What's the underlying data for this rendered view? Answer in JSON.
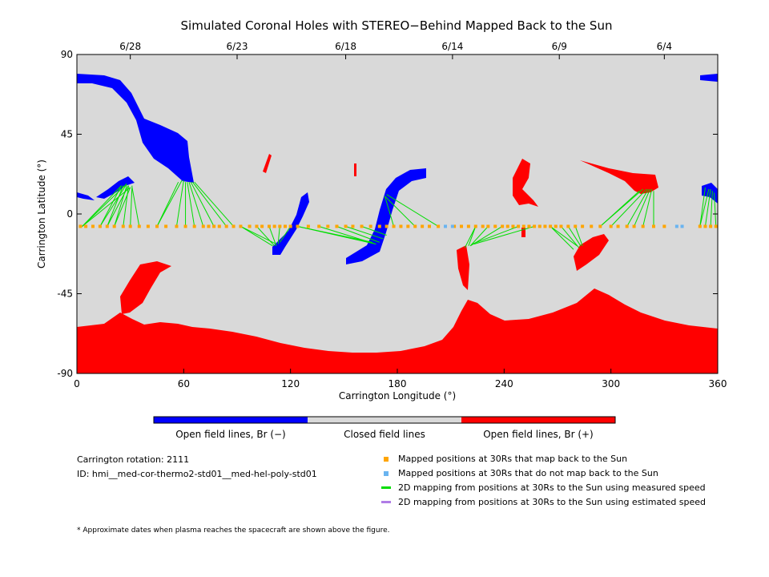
{
  "title": "Simulated Coronal Holes with STEREO−Behind Mapped Back to the Sun",
  "colors": {
    "background": "#ffffff",
    "closed": "#d9d9d9",
    "open_negative": "#0000ff",
    "open_positive": "#ff0000",
    "mapped_back": "#ffa500",
    "not_mapped": "#6ab4f0",
    "measured_speed": "#00dd00",
    "estimated_speed": "#b07ce6"
  },
  "chart_data": {
    "type": "heatmap",
    "title": "Simulated Coronal Holes with STEREO−Behind Mapped Back to the Sun",
    "xlabel": "Carrington Longitude (°)",
    "ylabel": "Carrington Latitude (°)",
    "xlim": [
      0,
      360
    ],
    "ylim": [
      -90,
      90
    ],
    "x_ticks": [
      0,
      60,
      120,
      180,
      240,
      300,
      360
    ],
    "y_ticks": [
      -90,
      -45,
      0,
      45,
      90
    ],
    "top_axis_dates": [
      {
        "label": "6/28",
        "lon": 30
      },
      {
        "label": "6/23",
        "lon": 90
      },
      {
        "label": "6/18",
        "lon": 151
      },
      {
        "label": "6/14",
        "lon": 211
      },
      {
        "label": "6/9",
        "lon": 271
      },
      {
        "label": "6/4",
        "lon": 330
      }
    ],
    "colorbar": {
      "segments": [
        {
          "label": "Open field lines, Br (−)",
          "color": "#0000ff"
        },
        {
          "label": "Closed field lines",
          "color": "#d9d9d9"
        },
        {
          "label": "Open field lines, Br (+)",
          "color": "#ff0000"
        }
      ]
    },
    "mapping_latitude": -7,
    "mapped_points_lon": [
      2,
      5,
      9,
      13,
      17,
      21,
      26,
      30,
      35,
      40,
      45,
      50,
      56,
      61,
      66,
      71,
      74,
      77,
      80,
      84,
      88,
      92,
      97,
      101,
      104,
      108,
      111,
      114,
      117,
      120,
      124,
      130,
      136,
      141,
      146,
      151,
      155,
      160,
      165,
      170,
      174,
      178,
      182,
      186,
      190,
      194,
      198,
      203,
      212,
      216,
      220,
      224,
      228,
      231,
      235,
      239,
      242,
      245,
      248,
      251,
      254,
      257,
      260,
      263,
      266,
      269,
      272,
      276,
      280,
      284,
      289,
      294,
      300,
      304,
      309,
      313,
      318,
      324,
      330,
      350,
      353,
      356,
      359
    ],
    "unmapped_points_lon": [
      207,
      211,
      337,
      340
    ],
    "mapping_lines_measured": [
      {
        "from_lon": 3,
        "targets": [
          [
            25,
            16
          ],
          [
            28,
            17
          ],
          [
            30,
            15
          ]
        ]
      },
      {
        "from_lon": 13,
        "targets": [
          [
            25,
            16
          ],
          [
            28,
            17
          ]
        ]
      },
      {
        "from_lon": 17,
        "targets": [
          [
            26,
            16
          ],
          [
            29,
            16
          ]
        ]
      },
      {
        "from_lon": 21,
        "targets": [
          [
            28,
            16
          ],
          [
            30,
            15
          ]
        ]
      },
      {
        "from_lon": 26,
        "targets": [
          [
            29,
            16
          ]
        ]
      },
      {
        "from_lon": 30,
        "targets": [
          [
            31,
            16
          ]
        ]
      },
      {
        "from_lon": 35,
        "targets": [
          [
            31,
            15
          ]
        ]
      },
      {
        "from_lon": 45,
        "targets": [
          [
            57,
            18
          ],
          [
            59,
            19
          ]
        ]
      },
      {
        "from_lon": 56,
        "targets": [
          [
            60,
            19
          ]
        ]
      },
      {
        "from_lon": 61,
        "targets": [
          [
            61,
            18
          ]
        ]
      },
      {
        "from_lon": 66,
        "targets": [
          [
            62,
            18
          ]
        ]
      },
      {
        "from_lon": 71,
        "targets": [
          [
            63,
            18
          ]
        ]
      },
      {
        "from_lon": 77,
        "targets": [
          [
            64,
            18
          ]
        ]
      },
      {
        "from_lon": 84,
        "targets": [
          [
            65,
            18
          ]
        ]
      },
      {
        "from_lon": 88,
        "targets": [
          [
            66,
            18
          ]
        ]
      },
      {
        "from_lon": 92,
        "targets": [
          [
            110,
            -18
          ],
          [
            112,
            -17
          ]
        ]
      },
      {
        "from_lon": 101,
        "targets": [
          [
            111,
            -18
          ]
        ]
      },
      {
        "from_lon": 108,
        "targets": [
          [
            112,
            -18
          ]
        ]
      },
      {
        "from_lon": 114,
        "targets": [
          [
            113,
            -17
          ]
        ]
      },
      {
        "from_lon": 120,
        "targets": [
          [
            114,
            -16
          ]
        ]
      },
      {
        "from_lon": 124,
        "targets": [
          [
            166,
            -16
          ],
          [
            168,
            -17
          ]
        ]
      },
      {
        "from_lon": 136,
        "targets": [
          [
            168,
            -17
          ]
        ]
      },
      {
        "from_lon": 146,
        "targets": [
          [
            170,
            -16
          ]
        ]
      },
      {
        "from_lon": 151,
        "targets": [
          [
            172,
            -14
          ]
        ]
      },
      {
        "from_lon": 160,
        "targets": [
          [
            174,
            -12
          ]
        ]
      },
      {
        "from_lon": 178,
        "targets": [
          [
            173,
            10
          ]
        ]
      },
      {
        "from_lon": 190,
        "targets": [
          [
            173,
            10
          ]
        ]
      },
      {
        "from_lon": 203,
        "targets": [
          [
            174,
            11
          ]
        ]
      },
      {
        "from_lon": 224,
        "targets": [
          [
            218,
            -19
          ],
          [
            220,
            -18
          ]
        ]
      },
      {
        "from_lon": 231,
        "targets": [
          [
            221,
            -18
          ]
        ]
      },
      {
        "from_lon": 239,
        "targets": [
          [
            221,
            -18
          ]
        ]
      },
      {
        "from_lon": 248,
        "targets": [
          [
            222,
            -17
          ]
        ]
      },
      {
        "from_lon": 257,
        "targets": [
          [
            223,
            -17
          ]
        ]
      },
      {
        "from_lon": 266,
        "targets": [
          [
            279,
            -20
          ],
          [
            281,
            -18
          ]
        ]
      },
      {
        "from_lon": 272,
        "targets": [
          [
            282,
            -19
          ]
        ]
      },
      {
        "from_lon": 276,
        "targets": [
          [
            283,
            -18
          ]
        ]
      },
      {
        "from_lon": 280,
        "targets": [
          [
            284,
            -18
          ]
        ]
      },
      {
        "from_lon": 294,
        "targets": [
          [
            316,
            13
          ],
          [
            318,
            14
          ]
        ]
      },
      {
        "from_lon": 300,
        "targets": [
          [
            320,
            14
          ]
        ]
      },
      {
        "from_lon": 309,
        "targets": [
          [
            321,
            14
          ]
        ]
      },
      {
        "from_lon": 313,
        "targets": [
          [
            322,
            14
          ]
        ]
      },
      {
        "from_lon": 318,
        "targets": [
          [
            323,
            14
          ]
        ]
      },
      {
        "from_lon": 324,
        "targets": [
          [
            324,
            13
          ]
        ]
      },
      {
        "from_lon": 350,
        "targets": [
          [
            353,
            15
          ],
          [
            355,
            14
          ]
        ]
      },
      {
        "from_lon": 353,
        "targets": [
          [
            356,
            14
          ]
        ]
      },
      {
        "from_lon": 356,
        "targets": [
          [
            357,
            13
          ]
        ]
      },
      {
        "from_lon": 359,
        "targets": [
          [
            358,
            12
          ]
        ]
      }
    ]
  },
  "legend": {
    "mapped_back": "Mapped positions at 30Rs that map back to the Sun",
    "not_mapped": "Mapped positions at 30Rs that do not map back to the Sun",
    "measured_speed": "2D mapping from positions at 30Rs to the Sun using measured speed",
    "estimated_speed": "2D mapping from positions at 30Rs to the Sun using estimated speed"
  },
  "info": {
    "carrington_rotation": "Carrington rotation: 2111",
    "id": "ID: hmi__med-cor-thermo2-std01__med-hel-poly-std01"
  },
  "footnote": "* Approximate dates when plasma reaches the spacecraft are shown above the figure."
}
